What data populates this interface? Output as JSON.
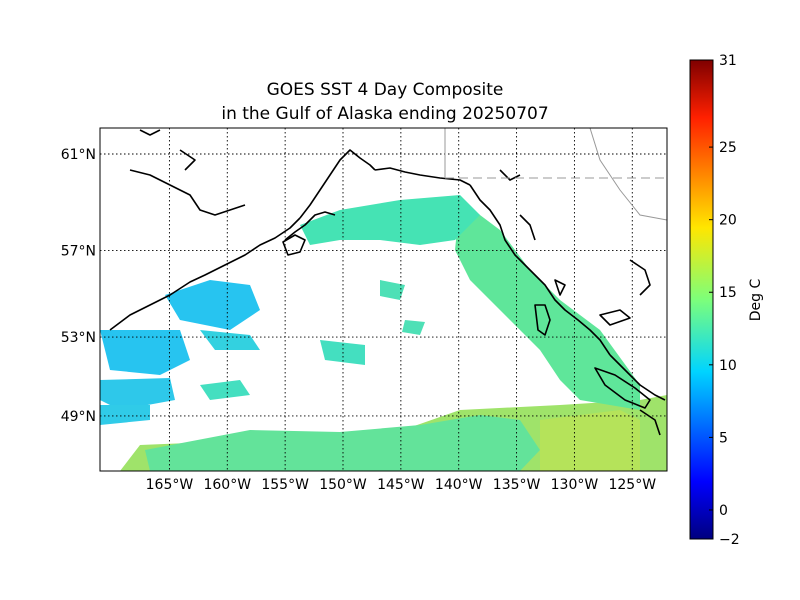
{
  "title_line1": "GOES SST 4 Day Composite",
  "title_line2": "in the Gulf of Alaska ending 20250707",
  "map": {
    "lon_range": [
      -171,
      -122
    ],
    "lat_range": [
      46,
      62
    ],
    "lon_ticks": [
      {
        "value": -165,
        "label": "165°W"
      },
      {
        "value": -160,
        "label": "160°W"
      },
      {
        "value": -155,
        "label": "155°W"
      },
      {
        "value": -150,
        "label": "150°W"
      },
      {
        "value": -145,
        "label": "145°W"
      },
      {
        "value": -140,
        "label": "140°W"
      },
      {
        "value": -135,
        "label": "135°W"
      },
      {
        "value": -130,
        "label": "130°W"
      },
      {
        "value": -125,
        "label": "125°W"
      }
    ],
    "lat_ticks": [
      {
        "value": 61,
        "label": "61°N"
      },
      {
        "value": 57,
        "label": "57°N"
      },
      {
        "value": 53,
        "label": "53°N"
      },
      {
        "value": 49,
        "label": "49°N"
      }
    ],
    "grid": true,
    "colors": {
      "coast": "#000000",
      "border": "#999999",
      "water_sst": "#3fe3b0",
      "water_cool": "#27c4f0",
      "water_warm": "#8fe67a"
    }
  },
  "colorbar": {
    "label": "Deg C",
    "min": -2,
    "max": 31,
    "ticks": [
      {
        "value": 31,
        "label": "31"
      },
      {
        "value": 25,
        "label": "25"
      },
      {
        "value": 20,
        "label": "20"
      },
      {
        "value": 15,
        "label": "15"
      },
      {
        "value": 10,
        "label": "10"
      },
      {
        "value": 5,
        "label": "5"
      },
      {
        "value": 0,
        "label": "0"
      },
      {
        "value": -2,
        "label": "−2"
      }
    ]
  }
}
